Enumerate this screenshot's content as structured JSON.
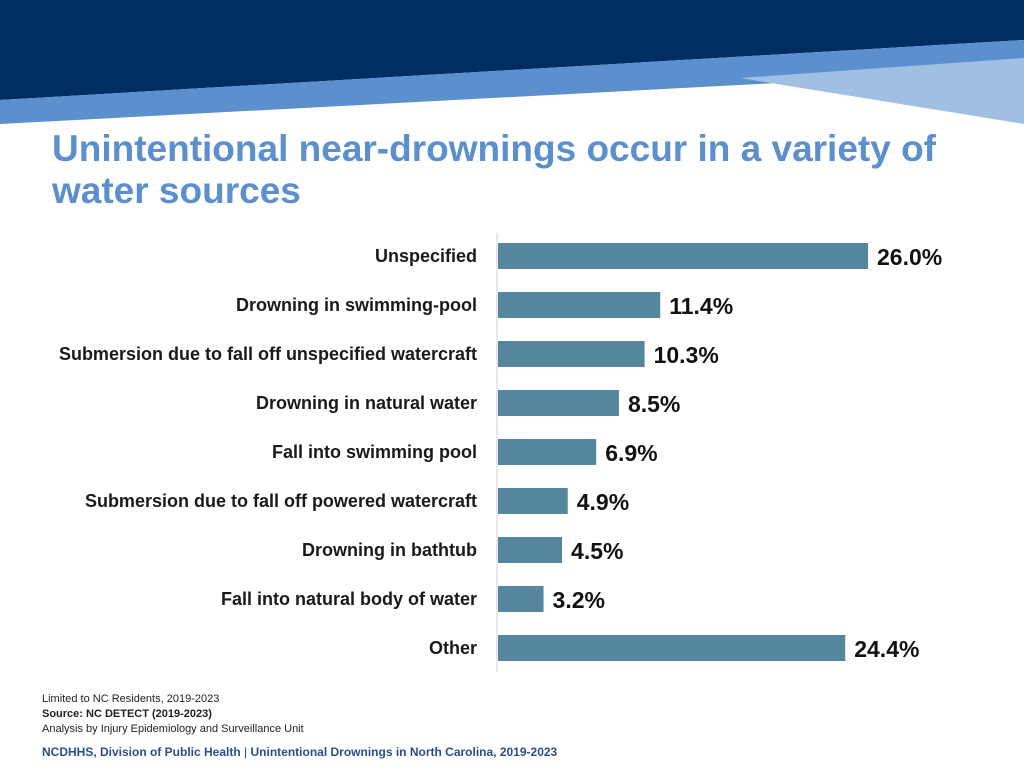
{
  "title": "Unintentional near-drownings occur in a variety of water sources",
  "colors": {
    "banner_dark": "#002d62",
    "banner_mid": "#5b8fcd",
    "banner_light": "#9fc0e3",
    "title": "#5b8fcd",
    "bar": "#56869d",
    "footer": "#2b4d8c"
  },
  "chart_data": {
    "type": "bar",
    "orientation": "horizontal",
    "categories": [
      "Unspecified",
      "Drowning in swimming-pool",
      "Submersion due to fall off unspecified watercraft",
      "Drowning in natural water",
      "Fall into swimming pool",
      "Submersion due to fall off powered watercraft",
      "Drowning in bathtub",
      "Fall into natural body of water",
      "Other"
    ],
    "values": [
      26.0,
      11.4,
      10.3,
      8.5,
      6.9,
      4.9,
      4.5,
      3.2,
      24.4
    ],
    "value_labels": [
      "26.0%",
      "11.4%",
      "10.3%",
      "8.5%",
      "6.9%",
      "4.9%",
      "4.5%",
      "3.2%",
      "24.4%"
    ],
    "xlim": [
      0,
      26.0
    ],
    "grid": false,
    "legend": false
  },
  "notes": {
    "line1": "Limited to NC Residents, 2019-2023",
    "line2": "Source: NC DETECT (2019-2023)",
    "line3": "Analysis by Injury Epidemiology and Surveillance Unit"
  },
  "footer": {
    "org": "NCDHHS, Division of Public Health",
    "separator": "|",
    "report": "Unintentional Drownings in North Carolina, 2019-2023"
  }
}
